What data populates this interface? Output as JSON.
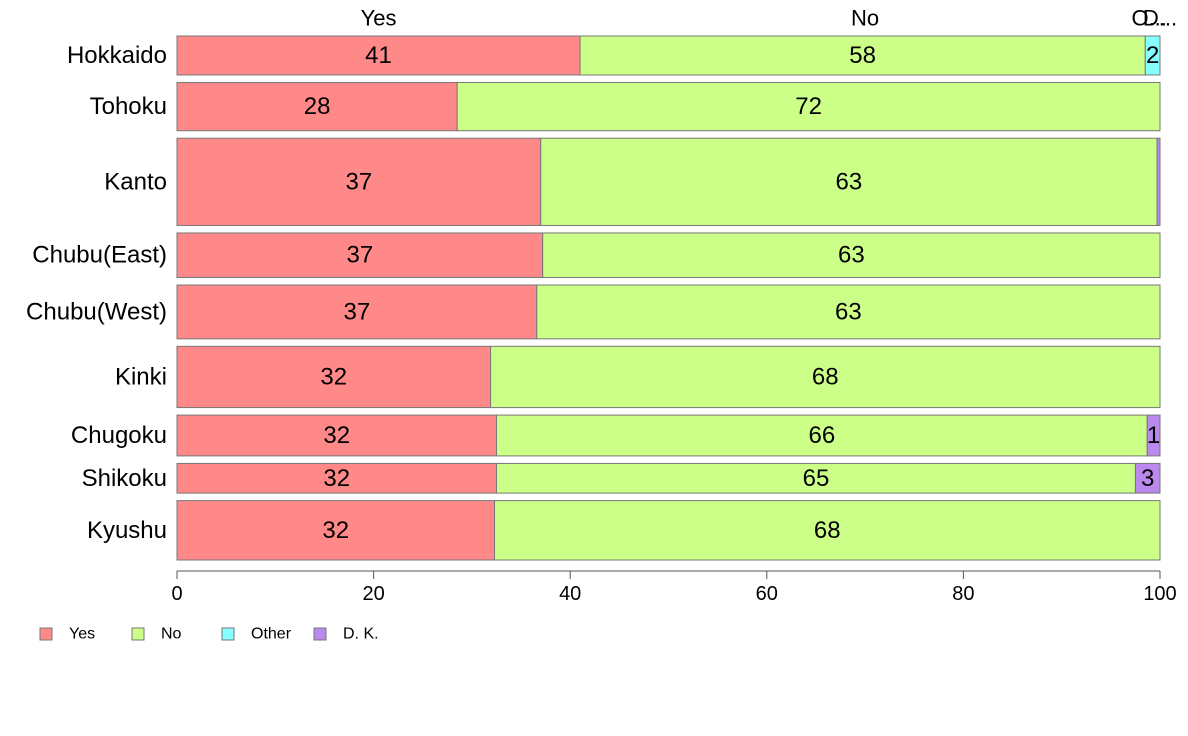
{
  "chart_data": {
    "type": "bar",
    "orientation": "horizontal",
    "stacked": true,
    "categories": [
      "Hokkaido",
      "Tohoku",
      "Kanto",
      "Chubu(East)",
      "Chubu(West)",
      "Kinki",
      "Chugoku",
      "Shikoku",
      "Kyushu"
    ],
    "series": [
      {
        "name": "Yes",
        "color": "#ff8888",
        "values": [
          41,
          28.5,
          37,
          37.2,
          36.6,
          31.9,
          32.5,
          32.5,
          32.3
        ],
        "labels": [
          "41",
          "28",
          "37",
          "37",
          "37",
          "32",
          "32",
          "32",
          "32"
        ]
      },
      {
        "name": "No",
        "color": "#ccff88",
        "values": [
          57.5,
          71.5,
          62.7,
          62.8,
          63.4,
          68.1,
          66.2,
          65.0,
          67.7
        ],
        "labels": [
          "58",
          "72",
          "63",
          "63",
          "63",
          "68",
          "66",
          "65",
          "68"
        ]
      },
      {
        "name": "Other",
        "color": "#88ffff",
        "values": [
          1.5,
          0,
          0,
          0,
          0,
          0,
          0,
          0,
          0
        ],
        "labels": [
          "2",
          "",
          "",
          "",
          "",
          "",
          "",
          "",
          ""
        ]
      },
      {
        "name": "D. K.",
        "color": "#bb88ee",
        "values": [
          0,
          0,
          0.3,
          0,
          0,
          0,
          1.3,
          2.5,
          0
        ],
        "labels": [
          "",
          "",
          "",
          "",
          "",
          "",
          "1",
          "3",
          ""
        ]
      }
    ],
    "bar_weights": [
      0.42,
      0.52,
      0.94,
      0.48,
      0.58,
      0.66,
      0.44,
      0.32,
      0.64
    ],
    "top_labels": [
      {
        "text": "Yes",
        "x": 20.5
      },
      {
        "text": "No",
        "x": 70.0
      },
      {
        "text": "O...",
        "x": 98.9
      },
      {
        "text": "D...",
        "x": 100.0
      }
    ],
    "xlim": [
      0,
      100
    ],
    "xticks": [
      0,
      20,
      40,
      60,
      80,
      100
    ],
    "legend_position": "bottom-left",
    "grid": false
  }
}
